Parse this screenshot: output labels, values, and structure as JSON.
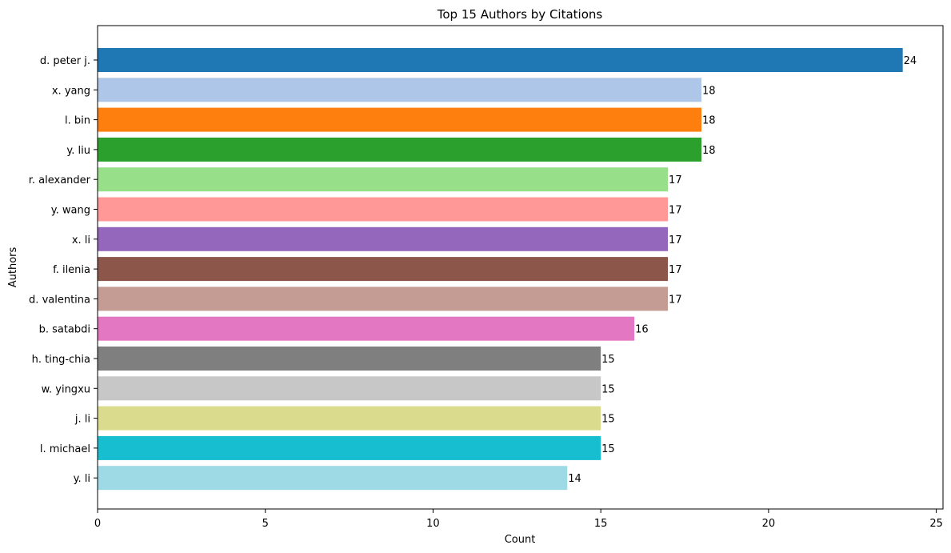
{
  "chart_data": {
    "type": "bar",
    "orientation": "horizontal",
    "title": "Top 15 Authors by Citations",
    "xlabel": "Count",
    "ylabel": "Authors",
    "xlim": [
      0,
      25.2
    ],
    "xticks": [
      0,
      5,
      10,
      15,
      20,
      25
    ],
    "grid": false,
    "categories": [
      "d. peter j.",
      "x. yang",
      "l. bin",
      "y. liu",
      "r. alexander",
      "y. wang",
      "x. li",
      "f. ilenia",
      "d. valentina",
      "b. satabdi",
      "h. ting-chia",
      "w. yingxu",
      "j. li",
      "l. michael",
      "y. li"
    ],
    "values": [
      24,
      18,
      18,
      18,
      17,
      17,
      17,
      17,
      17,
      16,
      15,
      15,
      15,
      15,
      14
    ],
    "colors": [
      "#1f77b4",
      "#aec7e8",
      "#ff7f0e",
      "#2ca02c",
      "#98df8a",
      "#ff9896",
      "#9467bd",
      "#8c564b",
      "#c49c94",
      "#e377c2",
      "#7f7f7f",
      "#c7c7c7",
      "#dbdb8d",
      "#17becf",
      "#9edae5"
    ]
  }
}
